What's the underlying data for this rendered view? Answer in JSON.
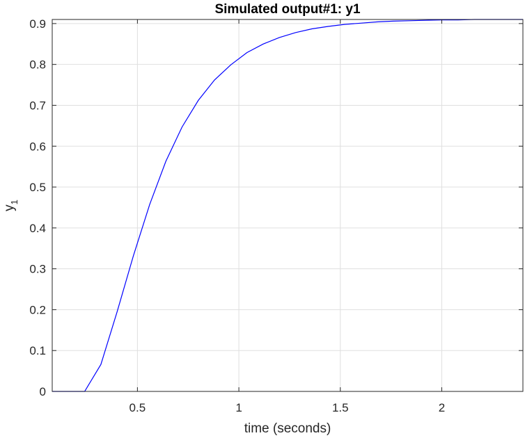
{
  "chart_data": {
    "type": "line",
    "title": "Simulated output#1: y1",
    "xlabel": "time (seconds)",
    "ylabel_main": "y",
    "ylabel_sub": "1",
    "xlim": [
      0.08,
      2.4
    ],
    "ylim": [
      0,
      0.91
    ],
    "xticks": [
      0.5,
      1,
      1.5,
      2
    ],
    "xtick_labels": [
      "0.5",
      "1",
      "1.5",
      "2"
    ],
    "yticks": [
      0,
      0.1,
      0.2,
      0.3,
      0.4,
      0.5,
      0.6,
      0.7,
      0.8,
      0.9
    ],
    "ytick_labels": [
      "0",
      "0.1",
      "0.2",
      "0.3",
      "0.4",
      "0.5",
      "0.6",
      "0.7",
      "0.8",
      "0.9"
    ],
    "grid": true,
    "series": [
      {
        "color": "#0000ff",
        "x": [
          0.08,
          0.24,
          0.32,
          0.4,
          0.48,
          0.56,
          0.64,
          0.72,
          0.8,
          0.88,
          0.96,
          1.04,
          1.12,
          1.2,
          1.28,
          1.36,
          1.44,
          1.52,
          1.6,
          1.68,
          1.76,
          1.84,
          1.92,
          2.0,
          2.08,
          2.16,
          2.24,
          2.32,
          2.4
        ],
        "y": [
          0,
          0,
          0.066,
          0.195,
          0.332,
          0.457,
          0.563,
          0.647,
          0.712,
          0.762,
          0.799,
          0.829,
          0.85,
          0.866,
          0.878,
          0.887,
          0.893,
          0.898,
          0.901,
          0.904,
          0.906,
          0.907,
          0.908,
          0.909,
          0.909,
          0.91,
          0.91,
          0.91,
          0.91
        ]
      }
    ]
  }
}
